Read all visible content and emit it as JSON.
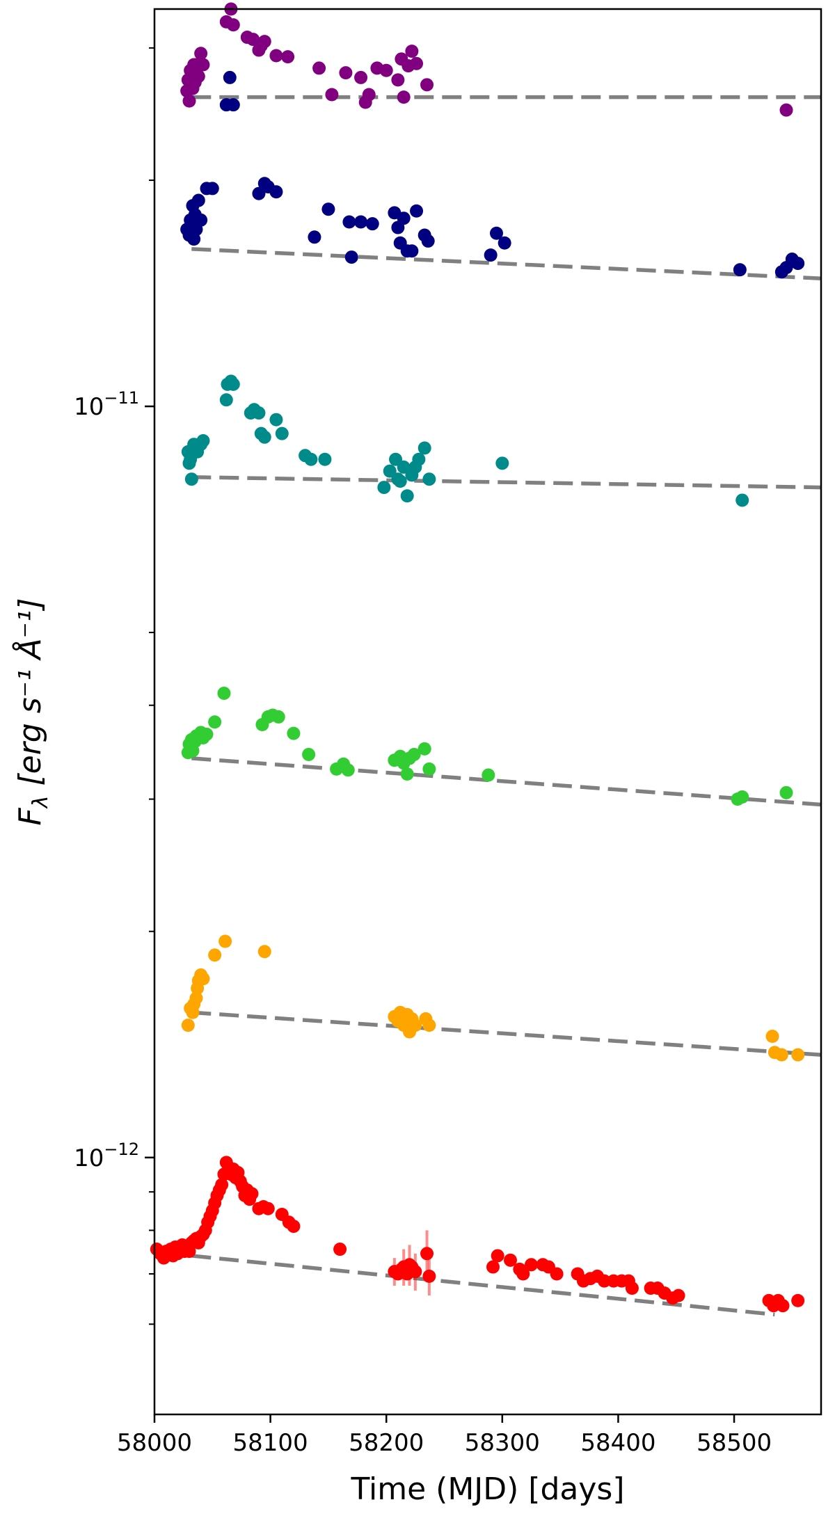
{
  "chart_data": {
    "type": "scatter",
    "title": "",
    "xlabel": "Time (MJD) [days]",
    "ylabel": {
      "main": "F",
      "sub": "λ",
      "units": " [erg s⁻¹ Å⁻¹]"
    },
    "xlim": [
      58000,
      58575
    ],
    "ylim": [
      4.55e-13,
      3.38e-11
    ],
    "yscale": "log",
    "grid": false,
    "legend": "none",
    "xticks": [
      {
        "value": 58000,
        "label": "58000"
      },
      {
        "value": 58100,
        "label": "58100"
      },
      {
        "value": 58200,
        "label": "58200"
      },
      {
        "value": 58300,
        "label": "58300"
      },
      {
        "value": 58400,
        "label": "58400"
      },
      {
        "value": 58500,
        "label": "58500"
      }
    ],
    "yticks_major": [
      {
        "value": 1e-12,
        "base": "10",
        "exp": "−12"
      },
      {
        "value": 1e-11,
        "base": "10",
        "exp": "−11"
      }
    ],
    "yticks_minor": [
      6e-13,
      7e-13,
      8e-13,
      9e-13,
      2e-12,
      3e-12,
      4e-12,
      5e-12,
      2e-11,
      3e-11
    ],
    "trend_lines": [
      {
        "color": "#808080",
        "x": [
          58032,
          58575
        ],
        "y": [
          2.58e-11,
          2.58e-11
        ]
      },
      {
        "color": "#808080",
        "x": [
          58032,
          58575
        ],
        "y": [
          1.62e-11,
          1.48e-11
        ]
      },
      {
        "color": "#808080",
        "x": [
          58032,
          58575
        ],
        "y": [
          8.05e-12,
          7.8e-12
        ]
      },
      {
        "color": "#808080",
        "x": [
          58032,
          58575
        ],
        "y": [
          3.4e-12,
          2.95e-12
        ]
      },
      {
        "color": "#808080",
        "x": [
          58032,
          58575
        ],
        "y": [
          1.56e-12,
          1.37e-12
        ]
      },
      {
        "color": "#808080",
        "x": [
          58032,
          58535
        ],
        "y": [
          7.4e-13,
          6.18e-13
        ]
      }
    ],
    "series": [
      {
        "name": "purple",
        "color": "#800080",
        "x": [
          58028,
          58029,
          58030,
          58031,
          58032,
          58033,
          58034,
          58035,
          58036,
          58038,
          58040,
          58042,
          58062,
          58066,
          58068,
          58080,
          58085,
          58090,
          58092,
          58095,
          58105,
          58115,
          58142,
          58153,
          58165,
          58178,
          58182,
          58185,
          58192,
          58200,
          58210,
          58213,
          58215,
          58219,
          58222,
          58226,
          58235,
          58545
        ],
        "y": [
          2.63e-11,
          2.72e-11,
          2.55e-11,
          2.8e-11,
          2.75e-11,
          2.65e-11,
          2.85e-11,
          2.7e-11,
          2.85e-11,
          2.75e-11,
          2.95e-11,
          2.85e-11,
          3.25e-11,
          3.38e-11,
          3.22e-11,
          3.1e-11,
          3.08e-11,
          2.98e-11,
          3.02e-11,
          3.06e-11,
          2.93e-11,
          2.92e-11,
          2.82e-11,
          2.6e-11,
          2.78e-11,
          2.74e-11,
          2.54e-11,
          2.6e-11,
          2.82e-11,
          2.8e-11,
          2.72e-11,
          2.9e-11,
          2.58e-11,
          2.84e-11,
          2.97e-11,
          2.86e-11,
          2.68e-11,
          2.48e-11
        ]
      },
      {
        "name": "navy",
        "color": "#000080",
        "x": [
          58028,
          58030,
          58031,
          58032,
          58033,
          58034,
          58035,
          58036,
          58038,
          58040,
          58045,
          58050,
          58062,
          58065,
          58068,
          58090,
          58095,
          58098,
          58105,
          58138,
          58150,
          58168,
          58170,
          58178,
          58188,
          58207,
          58210,
          58212,
          58215,
          58218,
          58222,
          58226,
          58233,
          58236,
          58290,
          58295,
          58302,
          58505,
          58541,
          58545,
          58550,
          58555
        ],
        "y": [
          1.72e-11,
          1.69e-11,
          1.77e-11,
          1.71e-11,
          1.85e-11,
          1.67e-11,
          1.8e-11,
          1.72e-11,
          1.88e-11,
          1.77e-11,
          1.95e-11,
          1.95e-11,
          2.52e-11,
          2.74e-11,
          2.52e-11,
          1.92e-11,
          1.98e-11,
          1.96e-11,
          1.93e-11,
          1.68e-11,
          1.83e-11,
          1.76e-11,
          1.58e-11,
          1.76e-11,
          1.75e-11,
          1.81e-11,
          1.73e-11,
          1.65e-11,
          1.78e-11,
          1.61e-11,
          1.61e-11,
          1.82e-11,
          1.69e-11,
          1.66e-11,
          1.59e-11,
          1.7e-11,
          1.65e-11,
          1.52e-11,
          1.51e-11,
          1.53e-11,
          1.57e-11,
          1.55e-11
        ]
      },
      {
        "name": "teal",
        "color": "#008B8B",
        "x": [
          58029,
          58030,
          58031,
          58032,
          58034,
          58035,
          58037,
          58040,
          58042,
          58062,
          58063,
          58066,
          58068,
          58083,
          58086,
          58090,
          58092,
          58095,
          58105,
          58110,
          58130,
          58135,
          58147,
          58198,
          58203,
          58208,
          58210,
          58212,
          58215,
          58218,
          58222,
          58225,
          58228,
          58233,
          58237,
          58300,
          58507
        ],
        "y": [
          8.7e-12,
          8.4e-12,
          8.5e-12,
          8e-12,
          8.9e-12,
          8.8e-12,
          8.7e-12,
          8.9e-12,
          9e-12,
          1.02e-11,
          1.07e-11,
          1.08e-11,
          1.07e-11,
          9.8e-12,
          9.9e-12,
          9.8e-12,
          9.2e-12,
          9.1e-12,
          9.6e-12,
          9.2e-12,
          8.6e-12,
          8.5e-12,
          8.5e-12,
          7.8e-12,
          8.2e-12,
          8.5e-12,
          8e-12,
          7.95e-12,
          8.3e-12,
          7.6e-12,
          8.1e-12,
          8.3e-12,
          8.5e-12,
          8.8e-12,
          8e-12,
          8.4e-12,
          7.5e-12
        ]
      },
      {
        "name": "green",
        "color": "#32CD32",
        "x": [
          58029,
          58030,
          58032,
          58033,
          58035,
          58036,
          58038,
          58040,
          58042,
          58045,
          58052,
          58060,
          58093,
          58098,
          58102,
          58107,
          58120,
          58133,
          58157,
          58163,
          58167,
          58207,
          58212,
          58215,
          58218,
          58220,
          58224,
          58233,
          58237,
          58288,
          58503,
          58507,
          58545
        ],
        "y": [
          3.46e-12,
          3.55e-12,
          3.6e-12,
          3.48e-12,
          3.58e-12,
          3.64e-12,
          3.62e-12,
          3.68e-12,
          3.62e-12,
          3.66e-12,
          3.8e-12,
          4.15e-12,
          3.77e-12,
          3.86e-12,
          3.88e-12,
          3.86e-12,
          3.67e-12,
          3.44e-12,
          3.29e-12,
          3.34e-12,
          3.28e-12,
          3.38e-12,
          3.42e-12,
          3.35e-12,
          3.24e-12,
          3.4e-12,
          3.44e-12,
          3.5e-12,
          3.29e-12,
          3.23e-12,
          3e-12,
          3.02e-12,
          3.06e-12
        ],
        "error": [
          0,
          0,
          0,
          0,
          0,
          0,
          0,
          0,
          0,
          0,
          0,
          0,
          0,
          0,
          0,
          0,
          0,
          0,
          0,
          0,
          0,
          0,
          0,
          0,
          5e-14,
          0,
          0,
          0,
          0,
          0,
          0,
          0,
          0
        ]
      },
      {
        "name": "orange",
        "color": "#FFA500",
        "x": [
          58029,
          58031,
          58033,
          58034,
          58036,
          58037,
          58038,
          58040,
          58042,
          58052,
          58061,
          58095,
          58207,
          58210,
          58212,
          58213,
          58215,
          58218,
          58220,
          58222,
          58225,
          58234,
          58237,
          58533,
          58535,
          58541,
          58555
        ],
        "y": [
          1.5e-12,
          1.58e-12,
          1.56e-12,
          1.6e-12,
          1.63e-12,
          1.68e-12,
          1.72e-12,
          1.75e-12,
          1.73e-12,
          1.86e-12,
          1.94e-12,
          1.88e-12,
          1.54e-12,
          1.52e-12,
          1.56e-12,
          1.53e-12,
          1.5e-12,
          1.55e-12,
          1.47e-12,
          1.53e-12,
          1.5e-12,
          1.53e-12,
          1.5e-12,
          1.45e-12,
          1.38e-12,
          1.37e-12,
          1.37e-12
        ]
      },
      {
        "name": "red",
        "color": "#FF0000",
        "x": [
          58002,
          58005,
          58008,
          58010,
          58012,
          58014,
          58016,
          58018,
          58020,
          58022,
          58024,
          58026,
          58028,
          58030,
          58032,
          58034,
          58036,
          58038,
          58040,
          58042,
          58044,
          58046,
          58048,
          58050,
          58052,
          58054,
          58056,
          58058,
          58060,
          58062,
          58064,
          58066,
          58068,
          58070,
          58072,
          58074,
          58076,
          58078,
          58080,
          58082,
          58084,
          58090,
          58094,
          58098,
          58110,
          58116,
          58120,
          58160,
          58207,
          58210,
          58213,
          58215,
          58218,
          58220,
          58222,
          58225,
          58235,
          58237,
          58292,
          58296,
          58307,
          58315,
          58318,
          58325,
          58335,
          58340,
          58347,
          58365,
          58370,
          58376,
          58382,
          58388,
          58396,
          58403,
          58409,
          58412,
          58428,
          58434,
          58440,
          58447,
          58452,
          58530,
          58534,
          58538,
          58542,
          58555
        ],
        "y": [
          7.55e-13,
          7.45e-13,
          7.35e-13,
          7.5e-13,
          7.45e-13,
          7.55e-13,
          7.4e-13,
          7.6e-13,
          7.45e-13,
          7.6e-13,
          7.65e-13,
          7.5e-13,
          7.6e-13,
          7.5e-13,
          7.7e-13,
          7.75e-13,
          7.8e-13,
          7.7e-13,
          7.85e-13,
          7.9e-13,
          8e-13,
          8.2e-13,
          8.35e-13,
          8.5e-13,
          8.7e-13,
          8.9e-13,
          9.05e-13,
          9.2e-13,
          9.5e-13,
          9.85e-13,
          9.7e-13,
          9.5e-13,
          9.65e-13,
          9.4e-13,
          9.55e-13,
          9.3e-13,
          9.15e-13,
          8.9e-13,
          9.05e-13,
          8.8e-13,
          8.95e-13,
          8.55e-13,
          8.6e-13,
          8.55e-13,
          8.4e-13,
          8.2e-13,
          8.1e-13,
          7.55e-13,
          7.05e-13,
          7e-13,
          7.1e-13,
          7.15e-13,
          7e-13,
          7.2e-13,
          7.15e-13,
          7.05e-13,
          7.45e-13,
          6.95e-13,
          7.15e-13,
          7.4e-13,
          7.3e-13,
          7.1e-13,
          7e-13,
          7.2e-13,
          7.2e-13,
          7.15e-13,
          7e-13,
          7e-13,
          6.85e-13,
          6.9e-13,
          6.95e-13,
          6.85e-13,
          6.85e-13,
          6.85e-13,
          6.85e-13,
          6.7e-13,
          6.7e-13,
          6.7e-13,
          6.6e-13,
          6.5e-13,
          6.55e-13,
          6.45e-13,
          6.35e-13,
          6.45e-13,
          6.35e-13,
          6.45e-13
        ],
        "error": [
          0,
          0,
          0,
          0,
          0,
          0,
          0,
          0,
          0,
          0,
          0,
          0,
          0,
          0,
          0,
          0,
          0,
          0,
          0,
          0,
          0,
          0,
          0,
          0,
          0,
          0,
          0,
          0,
          0,
          0,
          0,
          0,
          0,
          0,
          0,
          0,
          0,
          0,
          0,
          0,
          0,
          0,
          0,
          0,
          0,
          0,
          0,
          0,
          3e-14,
          0,
          0,
          4e-14,
          0,
          4.5e-14,
          0,
          4e-14,
          5.5e-14,
          4e-14,
          0,
          0,
          0,
          0,
          0,
          0,
          0,
          0,
          0,
          0,
          0,
          0,
          0,
          0,
          0,
          0,
          0,
          0,
          0,
          0,
          0,
          0,
          0,
          0,
          0,
          0,
          0,
          0
        ]
      }
    ]
  }
}
